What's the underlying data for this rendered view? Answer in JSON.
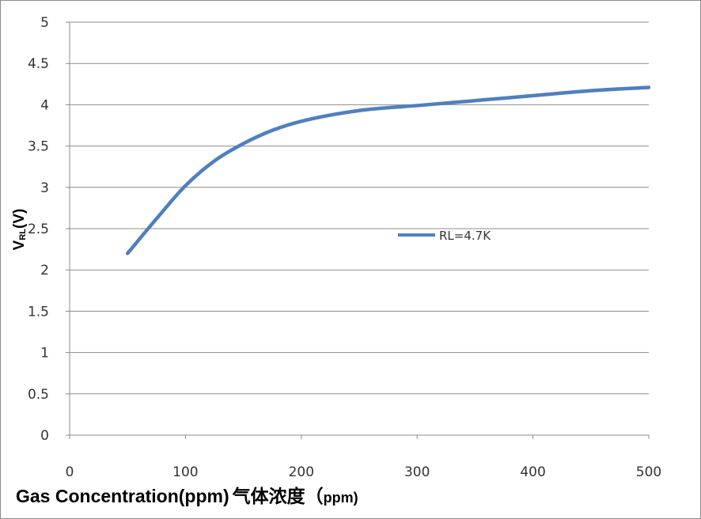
{
  "chart_data": {
    "type": "line",
    "xlabel": {
      "main": "Gas Concentration(ppm)",
      "cn": "气体浓度（",
      "unit": "ppm)"
    },
    "ylabel": {
      "main": "V",
      "sub": "RL",
      "unit": "(V)"
    },
    "xlim": [
      0,
      500
    ],
    "ylim": [
      0,
      5
    ],
    "x_ticks": [
      "0",
      "100",
      "200",
      "300",
      "400",
      "500"
    ],
    "y_ticks": [
      "0",
      "0.5",
      "1",
      "1.5",
      "2",
      "2.5",
      "3",
      "3.5",
      "4",
      "4.5",
      "5"
    ],
    "grid": "horizontal",
    "legend_position": "center-right",
    "series": [
      {
        "name": "RL=4.7K",
        "color": "#4f7fbf",
        "x": [
          50,
          75,
          100,
          125,
          150,
          175,
          200,
          250,
          300,
          350,
          400,
          450,
          500
        ],
        "y": [
          2.2,
          2.62,
          3.02,
          3.32,
          3.53,
          3.69,
          3.8,
          3.93,
          3.99,
          4.05,
          4.11,
          4.17,
          4.21
        ]
      }
    ]
  }
}
